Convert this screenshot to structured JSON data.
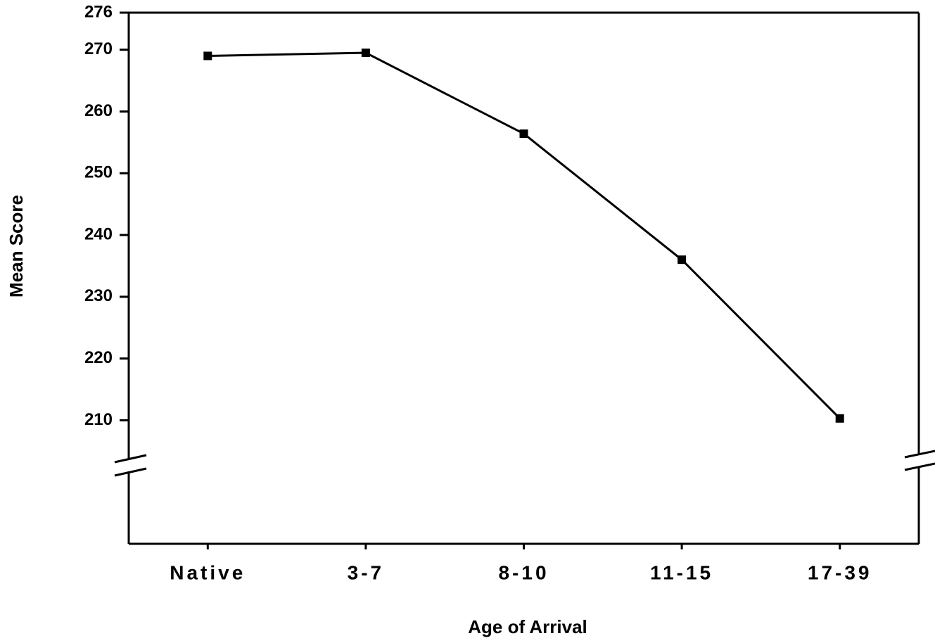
{
  "chart_data": {
    "type": "line",
    "xlabel": "Age of Arrival",
    "ylabel": "Mean Score",
    "categories": [
      "Native",
      "3-7",
      "8-10",
      "11-15",
      "17-39"
    ],
    "series": [
      {
        "name": "Mean Score",
        "color": "#000000",
        "values": [
          269,
          269.5,
          256.4,
          236,
          210.3
        ]
      }
    ],
    "ylim": [
      190,
      276
    ],
    "yticks": [
      210,
      220,
      230,
      240,
      250,
      260,
      270,
      276
    ],
    "grid": false
  }
}
